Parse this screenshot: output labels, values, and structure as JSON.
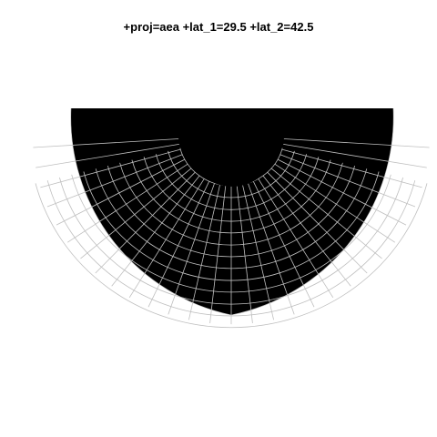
{
  "map": {
    "title": "+proj=aea +lat_1=29.5 +lat_2=42.5",
    "projection": "albers-equal-area",
    "background_color": "#ffffff",
    "land_color": "#000000",
    "graticule_color": "#bfbfbf"
  }
}
